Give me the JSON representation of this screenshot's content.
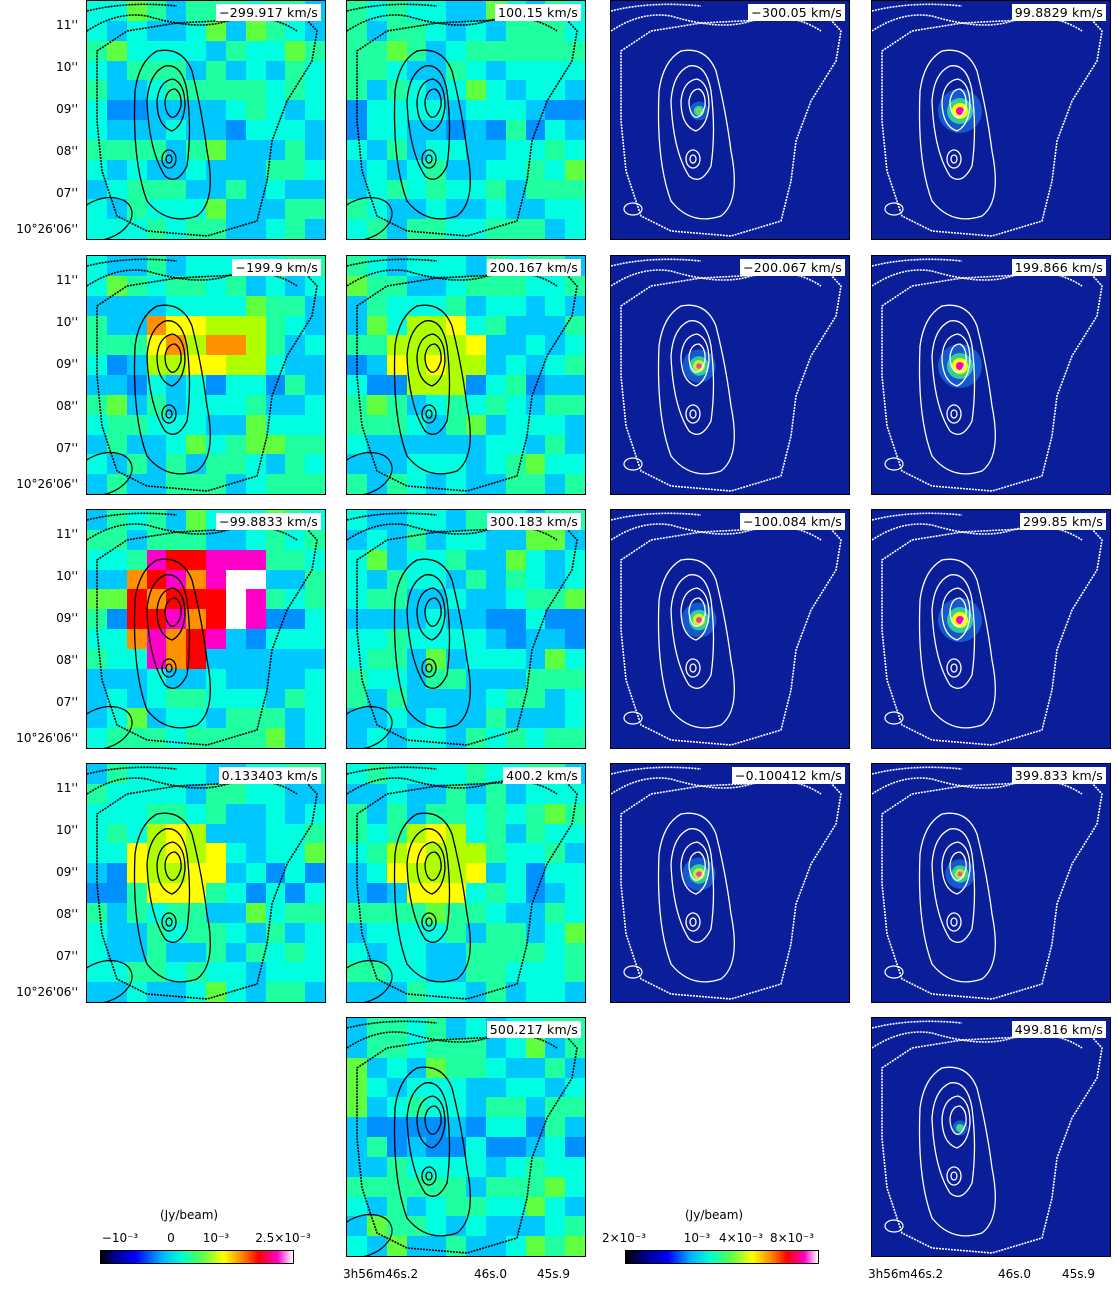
{
  "columns": [
    {
      "id": "c1",
      "panels": [
        "−299.917 km/s",
        "−199.9 km/s",
        "−99.8833 km/s",
        "0.133403 km/s"
      ]
    },
    {
      "id": "c2",
      "panels": [
        "100.15 km/s",
        "200.167 km/s",
        "300.183 km/s",
        "400.2 km/s",
        "500.217 km/s"
      ]
    },
    {
      "id": "c3",
      "panels": [
        "−300.05 km/s",
        "−200.067 km/s",
        "−100.084 km/s",
        "−0.100412 km/s"
      ]
    },
    {
      "id": "c4",
      "panels": [
        "99.8829 km/s",
        "199.866 km/s",
        "299.85 km/s",
        "399.833 km/s",
        "499.816 km/s"
      ]
    }
  ],
  "y_ticks": [
    "11''",
    "10''",
    "09''",
    "08''",
    "07''",
    "10°26'06''"
  ],
  "x_ticks": {
    "c2": [
      "3h56m46s.2",
      "46s.0",
      "45s.9"
    ],
    "c4": [
      "3h56m46s.2",
      "46s.0",
      "45s.9"
    ]
  },
  "colorbar_left": {
    "title": "(Jy/beam)",
    "labels": [
      "−10⁻³",
      "0",
      "10⁻³",
      "2.5×10⁻³"
    ],
    "range": [
      -0.0015,
      0.0028
    ]
  },
  "colorbar_right": {
    "title": "(Jy/beam)",
    "labels": [
      "2×10⁻³",
      "10⁻³",
      "4×10⁻³",
      "8×10⁻³"
    ],
    "range": [
      -0.002,
      0.009
    ]
  },
  "colors": {
    "background": "#ffffff",
    "alma_bg": "#0a1e9a",
    "contour_dark": "#000000",
    "contour_light": "#ffffff"
  }
}
